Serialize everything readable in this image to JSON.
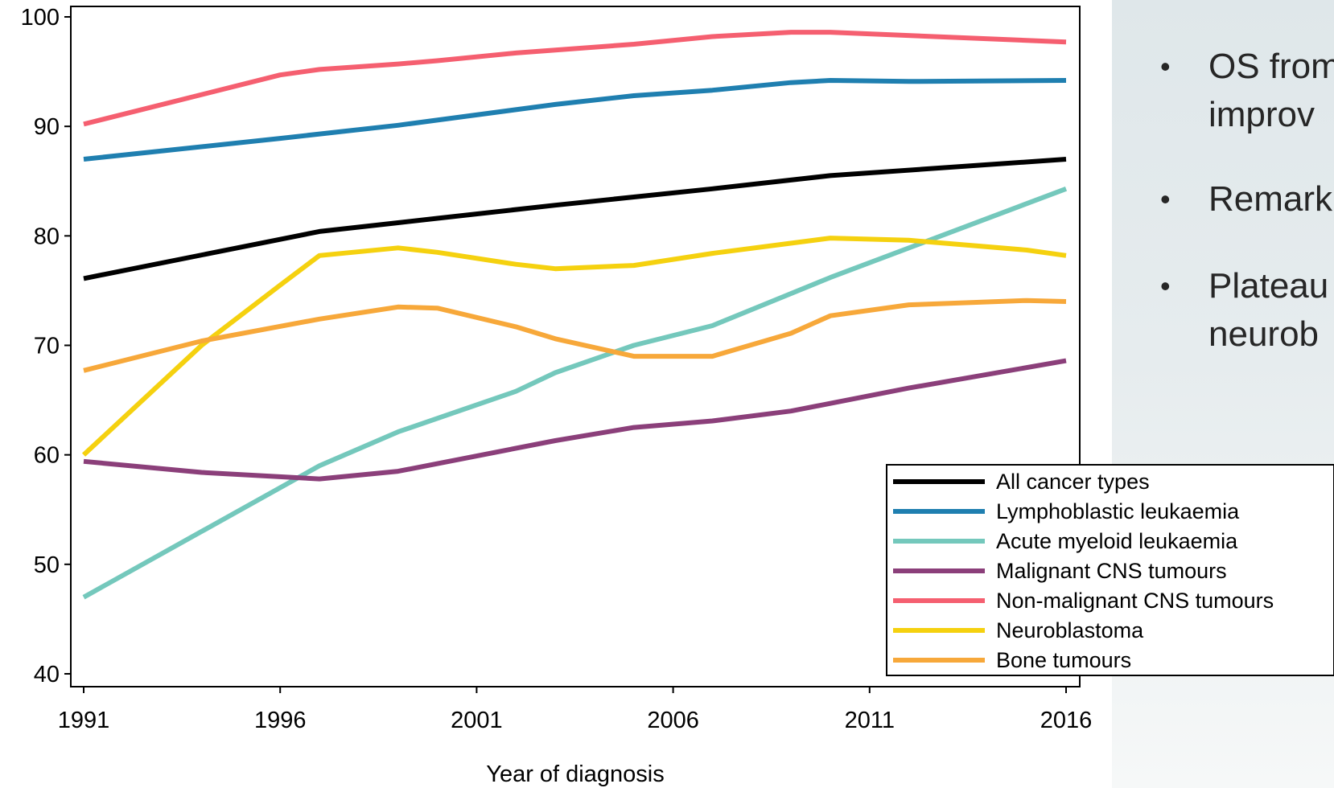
{
  "slide": {
    "bullets": [
      {
        "lines": [
          "OS from",
          "improv"
        ]
      },
      {
        "lines": [
          "Remark"
        ]
      },
      {
        "lines": [
          "Plateau",
          "neurob"
        ]
      }
    ]
  },
  "chart_data": {
    "type": "line",
    "xlabel": "Year of diagnosis",
    "ylabel": "",
    "xlim": [
      1991,
      2016
    ],
    "ylim": [
      40,
      100
    ],
    "xticks": [
      1991,
      1996,
      2001,
      2006,
      2011,
      2016
    ],
    "yticks": [
      40,
      50,
      60,
      70,
      80,
      90,
      100
    ],
    "grid": false,
    "legend_position": "bottom-right",
    "series": [
      {
        "name": "All cancer types",
        "color": "#000000",
        "x": [
          1991,
          1997,
          1999,
          2000,
          2003,
          2007,
          2010,
          2016
        ],
        "y": [
          76.1,
          80.4,
          81.2,
          81.6,
          82.8,
          84.3,
          85.5,
          87.0
        ]
      },
      {
        "name": "Lymphoblastic leukaemia",
        "color": "#1f7fb0",
        "x": [
          1991,
          1996,
          1999,
          2003,
          2005,
          2007,
          2009,
          2010,
          2012,
          2016
        ],
        "y": [
          87.0,
          88.9,
          90.1,
          92.0,
          92.8,
          93.3,
          94.0,
          94.2,
          94.1,
          94.2
        ]
      },
      {
        "name": "Acute myeloid leukaemia",
        "color": "#74c8bc",
        "x": [
          1991,
          1997,
          1999,
          2002,
          2003,
          2005,
          2007,
          2010,
          2016
        ],
        "y": [
          47.0,
          59.0,
          62.1,
          65.8,
          67.5,
          70.0,
          71.8,
          76.2,
          84.3
        ]
      },
      {
        "name": "Malignant CNS tumours",
        "color": "#8b3f7a",
        "x": [
          1991,
          1994,
          1997,
          1999,
          2003,
          2005,
          2007,
          2009,
          2012,
          2016
        ],
        "y": [
          59.4,
          58.4,
          57.8,
          58.5,
          61.3,
          62.5,
          63.1,
          64.0,
          66.1,
          68.6
        ]
      },
      {
        "name": "Non-malignant CNS tumours",
        "color": "#f55f70",
        "x": [
          1991,
          1996,
          1997,
          1999,
          2000,
          2002,
          2005,
          2007,
          2009,
          2010,
          2016
        ],
        "y": [
          90.2,
          94.7,
          95.2,
          95.7,
          96.0,
          96.7,
          97.5,
          98.2,
          98.6,
          98.6,
          97.7
        ]
      },
      {
        "name": "Neuroblastoma",
        "color": "#f5d10f",
        "x": [
          1991,
          1994,
          1996,
          1997,
          1999,
          2000,
          2002,
          2003,
          2005,
          2007,
          2010,
          2012,
          2015,
          2016
        ],
        "y": [
          60.0,
          70.0,
          75.5,
          78.2,
          78.9,
          78.5,
          77.4,
          77.0,
          77.3,
          78.4,
          79.8,
          79.6,
          78.7,
          78.2
        ]
      },
      {
        "name": "Bone tumours",
        "color": "#f7a83a",
        "x": [
          1991,
          1994,
          1997,
          1999,
          2000,
          2002,
          2003,
          2005,
          2007,
          2009,
          2010,
          2012,
          2015,
          2016
        ],
        "y": [
          67.7,
          70.4,
          72.4,
          73.5,
          73.4,
          71.7,
          70.6,
          69.0,
          69.0,
          71.1,
          72.7,
          73.7,
          74.1,
          74.0
        ]
      }
    ]
  }
}
